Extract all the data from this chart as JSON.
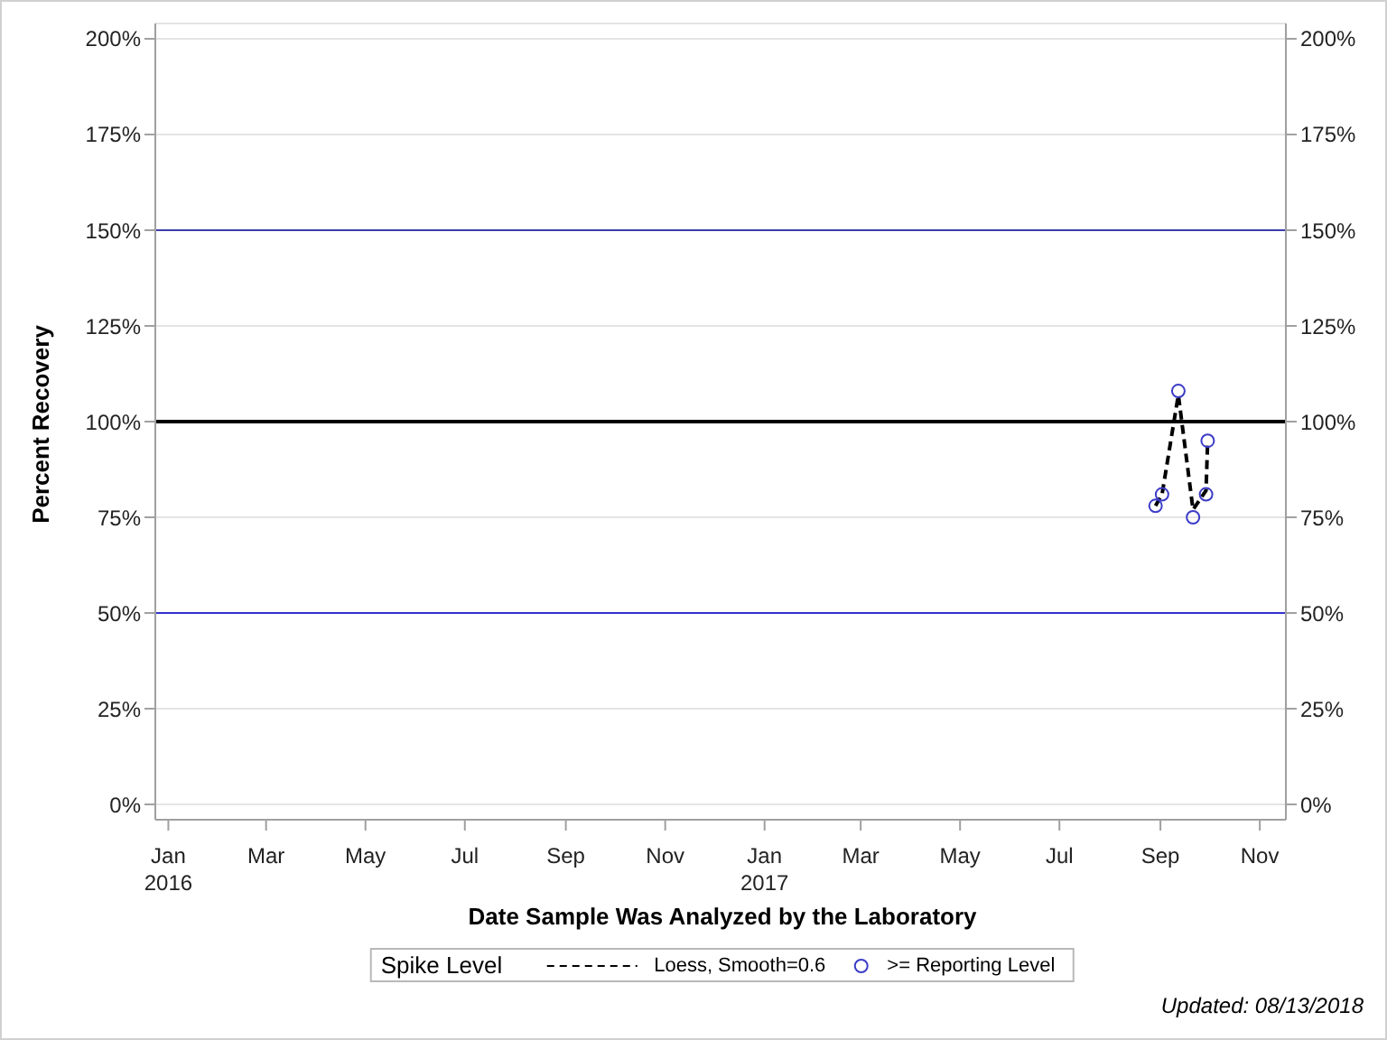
{
  "chart_data": {
    "type": "scatter",
    "xlabel": "Date Sample Was Analyzed by the Laboratory",
    "ylabel": "Percent Recovery",
    "annotations": [
      "Updated: 08/13/2018"
    ],
    "x": [
      "2017-08-29",
      "2017-09-02",
      "2017-09-12",
      "2017-09-21",
      "2017-09-29",
      "2017-09-30"
    ],
    "series": [
      {
        "name": "Loess, Smooth=0.6",
        "type": "line",
        "color": "#000000",
        "line_style": "dashed",
        "marker": "none",
        "values": [
          78,
          81,
          107,
          77,
          82,
          95
        ]
      },
      {
        "name": ">= Reporting Level",
        "color": "#3c3cc8",
        "marker": "circle",
        "values": [
          78,
          81,
          108,
          75,
          81,
          95
        ]
      }
    ],
    "xlim": [
      "2015-12-24",
      "2017-11-17"
    ],
    "xticks": [
      {
        "value": "2016-01",
        "label": "Jan\n2016"
      },
      {
        "value": "2016-03",
        "label": "Mar"
      },
      {
        "value": "2016-05",
        "label": "May"
      },
      {
        "value": "2016-07",
        "label": "Jul"
      },
      {
        "value": "2016-09",
        "label": "Sep"
      },
      {
        "value": "2016-11",
        "label": "Nov"
      },
      {
        "value": "2017-01",
        "label": "Jan\n2017"
      },
      {
        "value": "2017-03",
        "label": "Mar"
      },
      {
        "value": "2017-05",
        "label": "May"
      },
      {
        "value": "2017-07",
        "label": "Jul"
      },
      {
        "value": "2017-09",
        "label": "Sep"
      },
      {
        "value": "2017-11",
        "label": "Nov"
      }
    ],
    "ylim": [
      -4,
      204
    ],
    "yticks": [
      {
        "value": 0,
        "label": "0%"
      },
      {
        "value": 25,
        "label": "25%"
      },
      {
        "value": 50,
        "label": "50%"
      },
      {
        "value": 75,
        "label": "75%"
      },
      {
        "value": 100,
        "label": "100%"
      },
      {
        "value": 125,
        "label": "125%"
      },
      {
        "value": 150,
        "label": "150%"
      },
      {
        "value": 175,
        "label": "175%"
      },
      {
        "value": 200,
        "label": "200%"
      }
    ],
    "y2lim": [
      -4,
      204
    ],
    "y2ticks": [
      {
        "value": 0,
        "label": "0%"
      },
      {
        "value": 25,
        "label": "25%"
      },
      {
        "value": 50,
        "label": "50%"
      },
      {
        "value": 75,
        "label": "75%"
      },
      {
        "value": 100,
        "label": "100%"
      },
      {
        "value": 125,
        "label": "125%"
      },
      {
        "value": 150,
        "label": "150%"
      },
      {
        "value": 175,
        "label": "175%"
      },
      {
        "value": 200,
        "label": "200%"
      }
    ],
    "ref_lines": [
      {
        "axis": "y",
        "value": 150,
        "color": "#3d3dac"
      },
      {
        "axis": "y",
        "value": 100,
        "color": "#000000"
      },
      {
        "axis": "y",
        "value": 50,
        "color": "#3333cc"
      }
    ],
    "grid": "y",
    "legend": "bottom",
    "legend_title": "Spike Level"
  }
}
